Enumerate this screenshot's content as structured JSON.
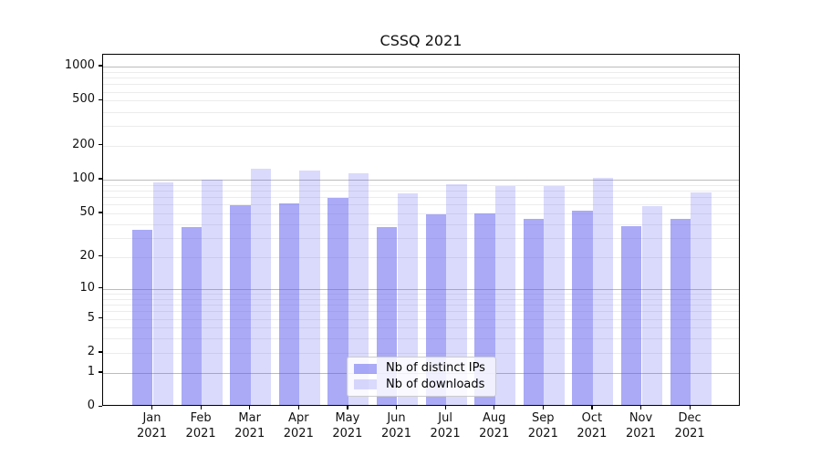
{
  "title": "CSSQ 2021",
  "chart_data": {
    "type": "bar",
    "title": "CSSQ 2021",
    "categories": [
      "Jan 2021",
      "Feb 2021",
      "Mar 2021",
      "Apr 2021",
      "May 2021",
      "Jun 2021",
      "Jul 2021",
      "Aug 2021",
      "Sep 2021",
      "Oct 2021",
      "Nov 2021",
      "Dec 2021"
    ],
    "series": [
      {
        "name": "Nb of distinct IPs",
        "color": "rgba(85,85,240,0.5)",
        "values": [
          34,
          36,
          57,
          59,
          66,
          36,
          47,
          48,
          43,
          51,
          37,
          43
        ]
      },
      {
        "name": "Nb of downloads",
        "color": "rgba(85,85,240,0.22)",
        "values": [
          91,
          96,
          121,
          115,
          110,
          73,
          87,
          84,
          84,
          100,
          56,
          74
        ]
      }
    ],
    "ylabel": "",
    "xlabel": "",
    "yscale": "log1p",
    "ylim": [
      0,
      1270
    ],
    "yticks": [
      1000,
      500,
      200,
      100,
      50,
      20,
      10,
      5,
      2,
      1,
      0
    ],
    "major_gridlines": [
      1,
      10,
      100,
      1000
    ],
    "minor_gridlines": [
      2,
      3,
      4,
      5,
      6,
      7,
      8,
      9,
      20,
      30,
      40,
      50,
      60,
      70,
      80,
      90,
      200,
      300,
      400,
      500,
      600,
      700,
      800,
      900
    ],
    "grid": true,
    "legend_position": "lower-center"
  },
  "colors": {
    "bar_ips": "rgba(85,85,240,0.5)",
    "bar_downloads": "rgba(85,85,240,0.22)",
    "major_grid": "#bcbcbc",
    "minor_grid": "#ececec",
    "axis": "#000000",
    "text": "#111111"
  }
}
